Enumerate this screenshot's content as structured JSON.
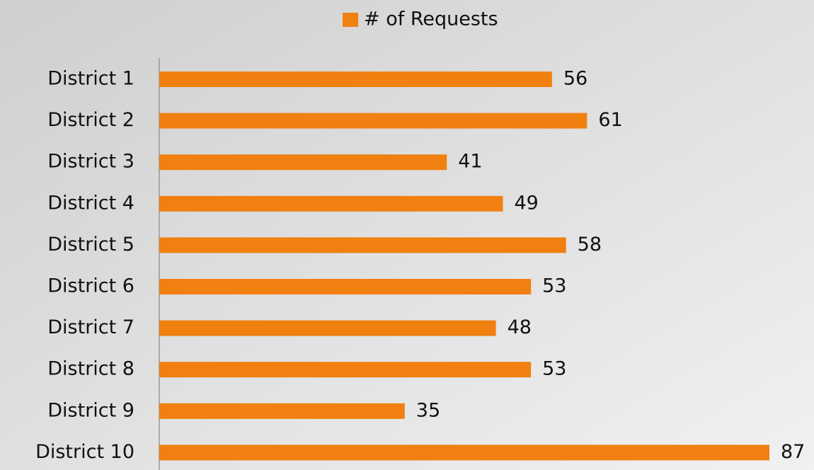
{
  "chart_data": {
    "type": "bar",
    "orientation": "horizontal",
    "legend": "top",
    "series": [
      {
        "name": "# of Requests",
        "color": "#f08010",
        "values": [
          56,
          61,
          41,
          49,
          58,
          53,
          48,
          53,
          35,
          87
        ]
      }
    ],
    "categories": [
      "District 1",
      "District 2",
      "District 3",
      "District 4",
      "District 5",
      "District 6",
      "District 7",
      "District 8",
      "District 9",
      "District 10"
    ]
  }
}
